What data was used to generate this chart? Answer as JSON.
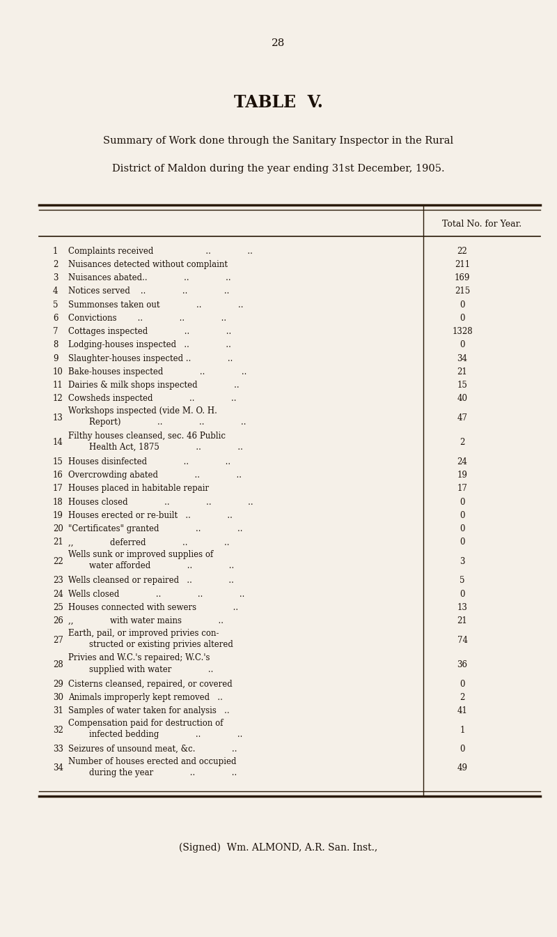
{
  "page_number": "28",
  "title": "TABLE  V.",
  "subtitle_line1": "Summary of Work done through the Sanitary Inspector in the Rural",
  "subtitle_line2": "District of Maldon during the year ending 31st December, 1905.",
  "col_header": "Total No. for Year.",
  "rows": [
    {
      "num": "1",
      "desc_lines": [
        "Complaints received                    ..              .."
      ],
      "value": "22"
    },
    {
      "num": "2",
      "desc_lines": [
        "Nuisances detected without complaint"
      ],
      "value": "211"
    },
    {
      "num": "3",
      "desc_lines": [
        "Nuisances abated..              ..              .."
      ],
      "value": "169"
    },
    {
      "num": "4",
      "desc_lines": [
        "Notices served    ..              ..              .."
      ],
      "value": "215"
    },
    {
      "num": "5",
      "desc_lines": [
        "Summonses taken out              ..              .."
      ],
      "value": "0"
    },
    {
      "num": "6",
      "desc_lines": [
        "Convictions        ..              ..              .."
      ],
      "value": "0"
    },
    {
      "num": "7",
      "desc_lines": [
        "Cottages inspected              ..              .."
      ],
      "value": "1328"
    },
    {
      "num": "8",
      "desc_lines": [
        "Lodging-houses inspected   ..              .."
      ],
      "value": "0"
    },
    {
      "num": "9",
      "desc_lines": [
        "Slaughter-houses inspected ..              .."
      ],
      "value": "34"
    },
    {
      "num": "10",
      "desc_lines": [
        "Bake-houses inspected              ..              .."
      ],
      "value": "21"
    },
    {
      "num": "11",
      "desc_lines": [
        "Dairies & milk shops inspected              .."
      ],
      "value": "15"
    },
    {
      "num": "12",
      "desc_lines": [
        "Cowsheds inspected              ..              .."
      ],
      "value": "40"
    },
    {
      "num": "13",
      "desc_lines": [
        "Workshops inspected (vide M. O. H.",
        "        Report)              ..              ..              .."
      ],
      "value": "47"
    },
    {
      "num": "14",
      "desc_lines": [
        "Filthy houses cleansed, sec. 46 Public",
        "        Health Act, 1875              ..              .."
      ],
      "value": "2"
    },
    {
      "num": "15",
      "desc_lines": [
        "Houses disinfected              ..              .."
      ],
      "value": "24"
    },
    {
      "num": "16",
      "desc_lines": [
        "Overcrowding abated              ..              .."
      ],
      "value": "19"
    },
    {
      "num": "17",
      "desc_lines": [
        "Houses placed in habitable repair"
      ],
      "value": "17"
    },
    {
      "num": "18",
      "desc_lines": [
        "Houses closed              ..              ..              .."
      ],
      "value": "0"
    },
    {
      "num": "19",
      "desc_lines": [
        "Houses erected or re-built   ..              .."
      ],
      "value": "0"
    },
    {
      "num": "20",
      "desc_lines": [
        "\"Certificates\" granted              ..              .."
      ],
      "value": "0"
    },
    {
      "num": "21",
      "desc_lines": [
        ",,              deferred              ..              .."
      ],
      "value": "0"
    },
    {
      "num": "22",
      "desc_lines": [
        "Wells sunk or improved supplies of",
        "        water afforded              ..              .."
      ],
      "value": "3"
    },
    {
      "num": "23",
      "desc_lines": [
        "Wells cleansed or repaired   ..              .."
      ],
      "value": "5"
    },
    {
      "num": "24",
      "desc_lines": [
        "Wells closed              ..              ..              .."
      ],
      "value": "0"
    },
    {
      "num": "25",
      "desc_lines": [
        "Houses connected with sewers              .."
      ],
      "value": "13"
    },
    {
      "num": "26",
      "desc_lines": [
        ",,              with water mains              .."
      ],
      "value": "21"
    },
    {
      "num": "27",
      "desc_lines": [
        "Earth, pail, or improved privies con-",
        "        structed or existing privies altered"
      ],
      "value": "74"
    },
    {
      "num": "28",
      "desc_lines": [
        "Privies and W.C.'s repaired; W.C.'s",
        "        supplied with water              .."
      ],
      "value": "36"
    },
    {
      "num": "29",
      "desc_lines": [
        "Cisterns cleansed, repaired, or covered"
      ],
      "value": "0"
    },
    {
      "num": "30",
      "desc_lines": [
        "Animals improperly kept removed   .."
      ],
      "value": "2"
    },
    {
      "num": "31",
      "desc_lines": [
        "Samples of water taken for analysis   .."
      ],
      "value": "41"
    },
    {
      "num": "32",
      "desc_lines": [
        "Compensation paid for destruction of",
        "        infected bedding              ..              .."
      ],
      "value": "1"
    },
    {
      "num": "33",
      "desc_lines": [
        "Seizures of unsound meat, &c.              .."
      ],
      "value": "0"
    },
    {
      "num": "34",
      "desc_lines": [
        "Number of houses erected and occupied",
        "        during the year              ..              .."
      ],
      "value": "49"
    }
  ],
  "signature": "(Signed)  Wm. ALMOND, A.R. San. Inst.,",
  "bg_color": "#f5f0e8",
  "text_color": "#1a1008",
  "line_color": "#2a1a08"
}
